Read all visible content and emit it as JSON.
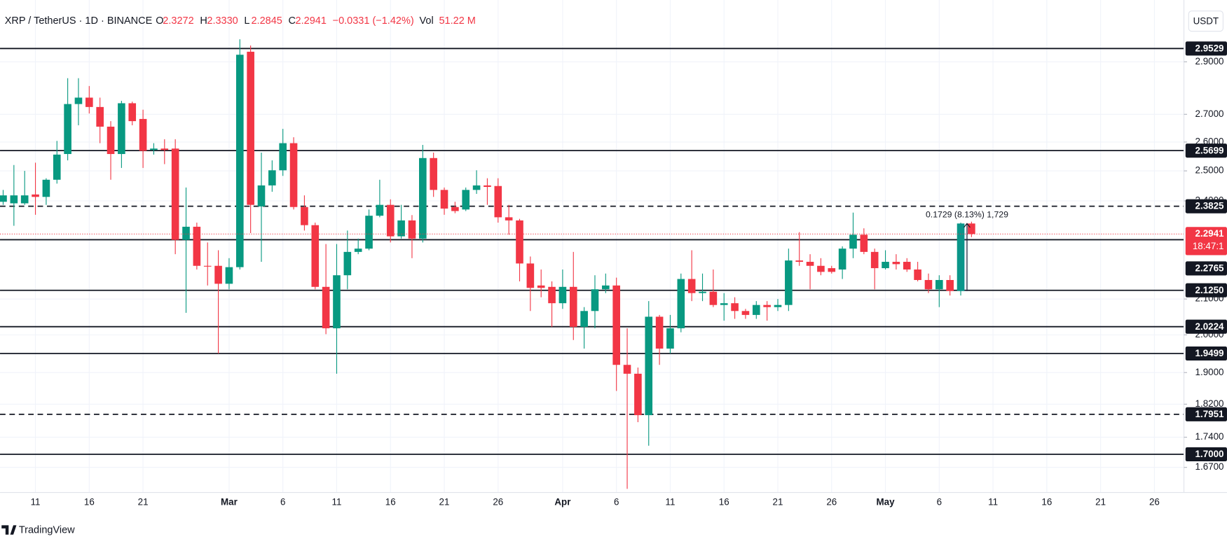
{
  "chart_data": {
    "type": "candlestick",
    "symbol": "XRP / TetherUS · 1D · BINANCE",
    "ohlc": [
      {
        "key": "O",
        "text": "2.3272"
      },
      {
        "key": "H",
        "text": "2.3330"
      },
      {
        "key": "L",
        "text": "2.2845"
      },
      {
        "key": "C",
        "text": "2.2941"
      }
    ],
    "change": "−0.0331 (−1.42%)",
    "volume_key": "Vol",
    "volume": "51.22 M",
    "currency": "USDT",
    "brand": "TradingView",
    "up_color": "#089981",
    "down_color": "#f23645",
    "log_scale": true,
    "grid": true,
    "categories": [
      null,
      null,
      null,
      "11",
      null,
      null,
      null,
      null,
      "16",
      null,
      null,
      null,
      null,
      "21",
      null,
      null,
      null,
      null,
      null,
      null,
      null,
      "Mar",
      null,
      null,
      null,
      null,
      "6",
      null,
      null,
      null,
      null,
      "11",
      null,
      null,
      null,
      null,
      "16",
      null,
      null,
      null,
      null,
      "21",
      null,
      null,
      null,
      null,
      "26",
      null,
      null,
      null,
      null,
      null,
      "Apr",
      null,
      null,
      null,
      null,
      "6",
      null,
      null,
      null,
      null,
      "11",
      null,
      null,
      null,
      null,
      "16",
      null,
      null,
      null,
      null,
      "21",
      null,
      null,
      null,
      null,
      "26",
      null,
      null,
      null,
      null,
      "May",
      null,
      null,
      null,
      null,
      "6",
      null,
      null,
      null,
      null,
      "11",
      null,
      null,
      null,
      null,
      "16",
      null,
      null,
      null,
      null,
      "21",
      null,
      null,
      null,
      null,
      "26",
      null,
      null
    ],
    "open": [
      2.397,
      2.392,
      2.392,
      2.421,
      2.413,
      2.47,
      2.558,
      2.738,
      2.762,
      2.727,
      2.655,
      2.558,
      2.741,
      2.683,
      2.572,
      2.577,
      2.577,
      2.276,
      2.317,
      2.197,
      2.197,
      2.144,
      2.193,
      2.94,
      2.382,
      2.451,
      2.502,
      2.596,
      2.38,
      2.322,
      2.135,
      2.018,
      2.169,
      2.239,
      2.249,
      2.352,
      2.387,
      2.287,
      2.337,
      2.28,
      2.544,
      2.436,
      2.38,
      2.372,
      2.436,
      2.451,
      2.449,
      2.347,
      2.337,
      2.204,
      2.139,
      2.135,
      2.088,
      2.135,
      2.022,
      2.066,
      2.128,
      2.139,
      1.92,
      1.897,
      1.793,
      2.05,
      1.963,
      2.018,
      2.158,
      2.117,
      2.121,
      2.083,
      2.088,
      2.066,
      2.055,
      2.083,
      2.077,
      2.083,
      2.213,
      2.209,
      2.197,
      2.19,
      2.186,
      2.249,
      2.292,
      2.239,
      2.19,
      2.209,
      2.209,
      2.186,
      2.155,
      2.128,
      2.155,
      2.123,
      2.3272,
      null,
      null,
      null,
      null,
      null,
      null,
      null,
      null,
      null,
      null,
      null,
      null,
      null,
      null,
      null,
      null,
      null,
      null,
      null
    ],
    "high": [
      2.436,
      2.52,
      2.5,
      2.528,
      2.475,
      2.604,
      2.836,
      2.836,
      2.806,
      2.762,
      2.675,
      2.75,
      2.747,
      2.717,
      2.596,
      2.61,
      2.61,
      2.444,
      2.33,
      2.268,
      2.244,
      2.22,
      2.99,
      2.965,
      2.563,
      2.536,
      2.647,
      2.617,
      2.418,
      2.33,
      2.263,
      2.263,
      2.305,
      2.28,
      2.372,
      2.47,
      2.405,
      2.387,
      2.354,
      2.59,
      2.563,
      2.444,
      2.397,
      2.444,
      2.502,
      2.475,
      2.475,
      2.387,
      2.342,
      2.225,
      2.186,
      2.151,
      2.186,
      2.239,
      2.077,
      2.169,
      2.174,
      2.162,
      2.018,
      1.913,
      2.094,
      2.055,
      2.055,
      2.174,
      2.244,
      2.174,
      2.186,
      2.117,
      2.105,
      2.072,
      2.094,
      2.094,
      2.1,
      2.249,
      2.3,
      2.232,
      2.22,
      2.197,
      2.256,
      2.362,
      2.312,
      2.249,
      2.244,
      2.232,
      2.22,
      2.209,
      2.174,
      2.169,
      2.169,
      2.33,
      2.333,
      null,
      null,
      null,
      null,
      null,
      null,
      null,
      null,
      null,
      null,
      null,
      null,
      null,
      null,
      null,
      null,
      null,
      null,
      null
    ],
    "low": [
      2.387,
      2.32,
      2.387,
      2.355,
      2.387,
      2.457,
      2.536,
      2.66,
      2.703,
      2.596,
      2.47,
      2.51,
      2.66,
      2.51,
      2.556,
      2.523,
      2.232,
      2.061,
      2.186,
      2.139,
      1.95,
      2.128,
      2.186,
      2.297,
      2.209,
      2.43,
      2.483,
      2.372,
      2.305,
      2.128,
      2.002,
      1.897,
      2.128,
      2.232,
      2.244,
      2.347,
      2.268,
      2.28,
      2.22,
      2.268,
      2.413,
      2.355,
      2.36,
      2.367,
      2.423,
      2.387,
      2.33,
      2.292,
      2.151,
      2.066,
      2.105,
      2.022,
      2.072,
      1.986,
      1.963,
      2.018,
      2.117,
      1.853,
      1.622,
      1.776,
      1.72,
      1.92,
      1.95,
      2.007,
      2.094,
      2.094,
      2.077,
      2.039,
      2.044,
      2.044,
      2.044,
      2.039,
      2.066,
      2.066,
      2.197,
      2.128,
      2.169,
      2.174,
      2.158,
      2.22,
      2.232,
      2.128,
      2.186,
      2.186,
      2.179,
      2.151,
      2.117,
      2.077,
      2.11,
      2.11,
      2.2845,
      null,
      null,
      null,
      null,
      null,
      null,
      null,
      null,
      null,
      null,
      null,
      null,
      null,
      null,
      null,
      null,
      null,
      null,
      null
    ],
    "close": [
      2.418,
      2.418,
      2.418,
      2.413,
      2.47,
      2.556,
      2.738,
      2.762,
      2.727,
      2.655,
      2.558,
      2.741,
      2.675,
      2.569,
      2.577,
      2.572,
      2.276,
      2.317,
      2.197,
      2.195,
      2.144,
      2.193,
      2.928,
      2.387,
      2.451,
      2.502,
      2.596,
      2.38,
      2.322,
      2.135,
      2.018,
      2.169,
      2.239,
      2.249,
      2.352,
      2.387,
      2.287,
      2.337,
      2.28,
      2.544,
      2.436,
      2.375,
      2.367,
      2.436,
      2.451,
      2.446,
      2.347,
      2.337,
      2.204,
      2.132,
      2.132,
      2.088,
      2.135,
      2.022,
      2.066,
      2.128,
      2.139,
      1.92,
      1.897,
      1.793,
      2.05,
      1.963,
      2.018,
      2.158,
      2.117,
      2.121,
      2.083,
      2.088,
      2.066,
      2.055,
      2.083,
      2.077,
      2.083,
      2.213,
      2.209,
      2.197,
      2.179,
      2.179,
      2.249,
      2.292,
      2.239,
      2.19,
      2.209,
      2.202,
      2.186,
      2.155,
      2.128,
      2.155,
      2.123,
      2.3272,
      2.2941,
      null,
      null,
      null,
      null,
      null,
      null,
      null,
      null,
      null,
      null,
      null,
      null,
      null,
      null,
      null,
      null,
      null,
      null,
      null
    ],
    "ylim": [
      1.614,
      3.121
    ],
    "yticks": [
      {
        "value": 2.9,
        "label": "2.9000"
      },
      {
        "value": 2.7,
        "label": "2.7000"
      },
      {
        "value": 2.6,
        "label": "2.6000"
      },
      {
        "value": 2.5,
        "label": "2.5000"
      },
      {
        "value": 2.4,
        "label": "2.4000"
      },
      {
        "value": 2.1,
        "label": "2.1000"
      },
      {
        "value": 2.0,
        "label": "2.0000"
      },
      {
        "value": 1.9,
        "label": "1.9000"
      },
      {
        "value": 1.82,
        "label": "1.8200"
      },
      {
        "value": 1.74,
        "label": "1.7400"
      },
      {
        "value": 1.67,
        "label": "1.6700"
      }
    ],
    "levels": [
      {
        "value": 2.9529,
        "style": "solid"
      },
      {
        "value": 2.5699,
        "style": "solid"
      },
      {
        "value": 2.3825,
        "style": "dashed"
      },
      {
        "value": 2.2765,
        "style": "solid"
      },
      {
        "value": 2.125,
        "label": "2.1250",
        "style": "solid"
      },
      {
        "value": 2.0224,
        "style": "solid"
      },
      {
        "value": 1.9499,
        "style": "solid"
      },
      {
        "value": 1.7951,
        "style": "dashed"
      },
      {
        "value": 1.7,
        "label": "1.7000",
        "style": "solid"
      }
    ],
    "last_price": 2.2941,
    "countdown": "18:47:1",
    "measure": "0.1729 (8.13%) 1,729"
  }
}
